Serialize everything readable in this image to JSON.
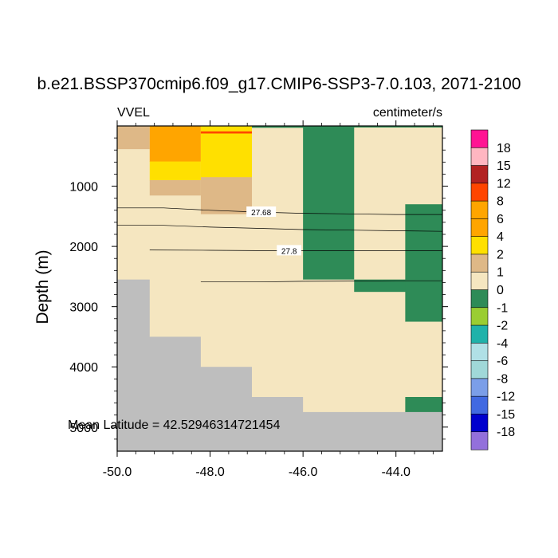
{
  "chart_data": {
    "type": "heatmap",
    "title": "b.e21.BSSP370cmip6.f09_g17.CMIP6-SSP3-7.0.103, 2071-2100",
    "left_label": "VVEL",
    "right_label": "centimeter/s",
    "ylabel": "Depth (m)",
    "xlabel": "",
    "xlim": [
      -50.0,
      -43.0
    ],
    "ylim": [
      0,
      5400
    ],
    "y_inverted": true,
    "x_ticks": [
      -50.0,
      -48.0,
      -46.0,
      -44.0
    ],
    "x_tick_labels": [
      "-50.0",
      "-48.0",
      "-46.0",
      "-44.0"
    ],
    "y_ticks": [
      1000,
      2000,
      3000,
      4000,
      5000
    ],
    "y_tick_labels": [
      "1000",
      "2000",
      "3000",
      "4000",
      "5000"
    ],
    "annotation": "Mean Latitude = 42.52946314721454",
    "levels": [
      "18",
      "15",
      "12",
      "8",
      "6",
      "4",
      "2",
      "1",
      "0",
      "-1",
      "-2",
      "-4",
      "-6",
      "-8",
      "-12",
      "-15",
      "-18"
    ],
    "colorbar_colors": [
      "#ff1493",
      "#ffb6c1",
      "#b22222",
      "#ff4500",
      "#ffa500",
      "#ffa500",
      "#ffe000",
      "#deb887",
      "#f5e6c0",
      "#2e8b57",
      "#9acd32",
      "#20b2aa",
      "#b0e0e6",
      "#a0d8d8",
      "#7b9ee8",
      "#4169e1",
      "#0000cd",
      "#9370db"
    ],
    "colors": {
      "land": "#bebebe",
      "neg_0_1": "#2e8b57",
      "pos_0_1": "#f5e6c0",
      "pos_1_2": "#deb887",
      "pos_2_4": "#ffe000",
      "pos_4_6": "#ffa500",
      "pos_6_8": "#ff4500"
    },
    "cells": [
      {
        "x": [
          -50.0,
          -49.3
        ],
        "y": [
          0,
          2550
        ],
        "c": "pos_0_1"
      },
      {
        "x": [
          -50.0,
          -49.3
        ],
        "y": [
          2550,
          5400
        ],
        "c": "land"
      },
      {
        "x": [
          -50.0,
          -49.3
        ],
        "y": [
          0,
          380
        ],
        "c": "pos_1_2"
      },
      {
        "x": [
          -49.3,
          -48.2
        ],
        "y": [
          0,
          3500
        ],
        "c": "pos_0_1"
      },
      {
        "x": [
          -49.3,
          -48.2
        ],
        "y": [
          3500,
          5400
        ],
        "c": "land"
      },
      {
        "x": [
          -49.3,
          -48.2
        ],
        "y": [
          0,
          590
        ],
        "c": "pos_4_6"
      },
      {
        "x": [
          -49.3,
          -48.2
        ],
        "y": [
          590,
          900
        ],
        "c": "pos_2_4"
      },
      {
        "x": [
          -49.3,
          -48.2
        ],
        "y": [
          900,
          1150
        ],
        "c": "pos_1_2"
      },
      {
        "x": [
          -48.2,
          -47.1
        ],
        "y": [
          0,
          4000
        ],
        "c": "pos_0_1"
      },
      {
        "x": [
          -48.2,
          -47.1
        ],
        "y": [
          4000,
          5400
        ],
        "c": "land"
      },
      {
        "x": [
          -48.2,
          -47.1
        ],
        "y": [
          0,
          850
        ],
        "c": "pos_2_4"
      },
      {
        "x": [
          -48.2,
          -47.1
        ],
        "y": [
          850,
          1460
        ],
        "c": "pos_1_2"
      },
      {
        "x": [
          -48.2,
          -47.1
        ],
        "y": [
          90,
          120
        ],
        "c": "pos_6_8"
      },
      {
        "x": [
          -47.1,
          -46.0
        ],
        "y": [
          0,
          4500
        ],
        "c": "pos_0_1"
      },
      {
        "x": [
          -47.1,
          -46.0
        ],
        "y": [
          4500,
          5400
        ],
        "c": "land"
      },
      {
        "x": [
          -47.1,
          -46.0
        ],
        "y": [
          0,
          25
        ],
        "c": "neg_0_1"
      },
      {
        "x": [
          -46.0,
          -44.9
        ],
        "y": [
          0,
          2550
        ],
        "c": "neg_0_1"
      },
      {
        "x": [
          -46.0,
          -44.9
        ],
        "y": [
          2550,
          4750
        ],
        "c": "pos_0_1"
      },
      {
        "x": [
          -46.0,
          -44.9
        ],
        "y": [
          4750,
          5400
        ],
        "c": "land"
      },
      {
        "x": [
          -44.9,
          -43.8
        ],
        "y": [
          0,
          25
        ],
        "c": "neg_0_1"
      },
      {
        "x": [
          -44.9,
          -43.8
        ],
        "y": [
          25,
          2750
        ],
        "c": "pos_0_1"
      },
      {
        "x": [
          -44.9,
          -43.8
        ],
        "y": [
          2750,
          4750
        ],
        "c": "pos_0_1"
      },
      {
        "x": [
          -44.9,
          -43.8
        ],
        "y": [
          2550,
          2750
        ],
        "c": "neg_0_1"
      },
      {
        "x": [
          -44.9,
          -43.8
        ],
        "y": [
          4750,
          5400
        ],
        "c": "land"
      },
      {
        "x": [
          -43.8,
          -43.0
        ],
        "y": [
          0,
          25
        ],
        "c": "neg_0_1"
      },
      {
        "x": [
          -43.8,
          -43.0
        ],
        "y": [
          25,
          1300
        ],
        "c": "pos_0_1"
      },
      {
        "x": [
          -43.8,
          -43.0
        ],
        "y": [
          1300,
          3250
        ],
        "c": "neg_0_1"
      },
      {
        "x": [
          -43.8,
          -43.0
        ],
        "y": [
          3250,
          4500
        ],
        "c": "pos_0_1"
      },
      {
        "x": [
          -43.8,
          -43.0
        ],
        "y": [
          4500,
          4750
        ],
        "c": "neg_0_1"
      },
      {
        "x": [
          -43.8,
          -43.0
        ],
        "y": [
          4750,
          5400
        ],
        "c": "land"
      }
    ],
    "contours": [
      {
        "label": "27.68",
        "label_at": [
          -46.9,
          1430
        ],
        "points": [
          [
            -50.0,
            1360
          ],
          [
            -49.0,
            1360
          ],
          [
            -48.0,
            1400
          ],
          [
            -47.0,
            1430
          ],
          [
            -46.0,
            1450
          ],
          [
            -45.0,
            1460
          ],
          [
            -44.0,
            1470
          ],
          [
            -43.0,
            1470
          ]
        ]
      },
      {
        "label": "",
        "label_at": null,
        "points": [
          [
            -50.0,
            1650
          ],
          [
            -49.0,
            1650
          ],
          [
            -48.0,
            1680
          ],
          [
            -47.0,
            1700
          ],
          [
            -46.0,
            1720
          ],
          [
            -45.0,
            1730
          ],
          [
            -44.0,
            1740
          ],
          [
            -43.0,
            1750
          ]
        ]
      },
      {
        "label": "27.8",
        "label_at": [
          -46.3,
          2070
        ],
        "points": [
          [
            -49.3,
            2060
          ],
          [
            -48.0,
            2065
          ],
          [
            -47.0,
            2070
          ],
          [
            -46.0,
            2070
          ],
          [
            -45.0,
            2070
          ],
          [
            -44.0,
            2070
          ],
          [
            -43.0,
            2070
          ]
        ]
      },
      {
        "label": "",
        "label_at": null,
        "points": [
          [
            -48.2,
            2590
          ],
          [
            -47.0,
            2590
          ],
          [
            -46.0,
            2580
          ],
          [
            -45.0,
            2575
          ],
          [
            -44.0,
            2570
          ],
          [
            -43.0,
            2570
          ]
        ]
      }
    ]
  }
}
